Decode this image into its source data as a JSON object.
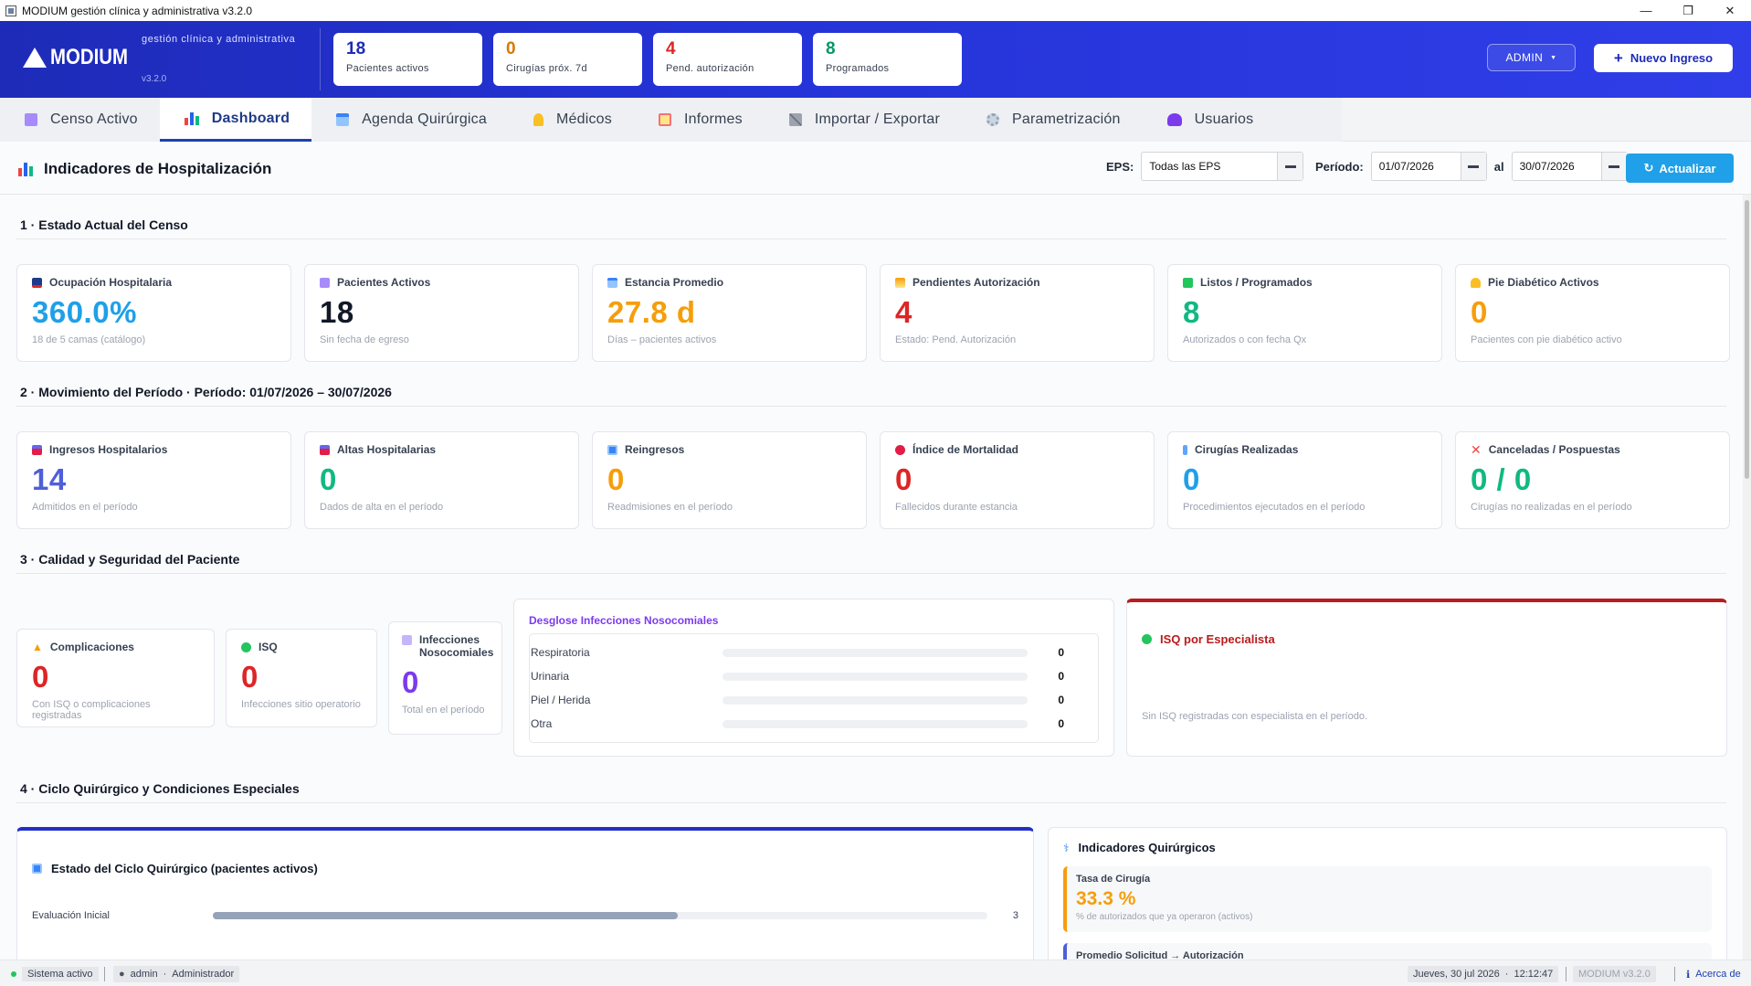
{
  "window": {
    "title": "MODIUM gestión clínica y administrativa  v3.2.0",
    "controls": [
      "—",
      "❐",
      "✕"
    ]
  },
  "header": {
    "brand": "MODIUM",
    "subtitle": "gestión clínica y administrativa",
    "version": "v3.2.0",
    "stats": [
      {
        "value": "18",
        "label": "Pacientes activos",
        "color": "#1e2bb8"
      },
      {
        "value": "0",
        "label": "Cirugías próx. 7d",
        "color": "#d97706"
      },
      {
        "value": "4",
        "label": "Pend. autorización",
        "color": "#dc2626"
      },
      {
        "value": "8",
        "label": "Programados",
        "color": "#059669"
      }
    ],
    "admin_label": "ADMIN",
    "new_label": "Nuevo Ingreso"
  },
  "tabs": [
    {
      "label": "Censo Activo",
      "icon": "clipboard-icon",
      "color": "#8b5cf6"
    },
    {
      "label": "Dashboard",
      "icon": "bar-chart-icon",
      "color": "#2563eb"
    },
    {
      "label": "Agenda Quirúrgica",
      "icon": "calendar-icon",
      "color": "#3b82f6"
    },
    {
      "label": "Médicos",
      "icon": "doctor-icon",
      "color": "#f59e0b"
    },
    {
      "label": "Informes",
      "icon": "report-icon",
      "color": "#ef4444"
    },
    {
      "label": "Importar / Exportar",
      "icon": "tools-icon",
      "color": "#6b7280"
    },
    {
      "label": "Parametrización",
      "icon": "gear-icon",
      "color": "#9ca3af"
    },
    {
      "label": "Usuarios",
      "icon": "users-icon",
      "color": "#7c3aed"
    }
  ],
  "toolbar": {
    "title": "Indicadores de Hospitalización",
    "eps_label": "EPS:",
    "eps_value": "Todas las EPS",
    "period_label": "Período:",
    "date_from": "01/07/2026",
    "al_label": "al",
    "date_to": "30/07/2026",
    "refresh_label": "Actualizar"
  },
  "section1": {
    "title": "1 · Estado Actual del Censo",
    "cards": [
      {
        "title": "Ocupación Hospitalaria",
        "value": "360.0%",
        "sub": "18 de 5 camas (catálogo)",
        "color": "#1fa0e8",
        "icon": "bed-icon"
      },
      {
        "title": "Pacientes Activos",
        "value": "18",
        "sub": "Sin fecha de egreso",
        "color": "#111827",
        "icon": "clipboard-icon"
      },
      {
        "title": "Estancia Promedio",
        "value": "27.8 d",
        "sub": "Días – pacientes activos",
        "color": "#f59e0b",
        "icon": "calendar-icon"
      },
      {
        "title": "Pendientes Autorización",
        "value": "4",
        "sub": "Estado: Pend. Autorización",
        "color": "#dc2626",
        "icon": "hourglass-icon"
      },
      {
        "title": "Listos / Programados",
        "value": "8",
        "sub": "Autorizados o con fecha Qx",
        "color": "#10b981",
        "icon": "check-icon"
      },
      {
        "title": "Pie Diabético Activos",
        "value": "0",
        "sub": "Pacientes con pie diabético activo",
        "color": "#f59e0b",
        "icon": "foot-icon"
      }
    ]
  },
  "section2": {
    "title": "2 · Movimiento del Período  ·  Período: 01/07/2026 – 30/07/2026",
    "cards": [
      {
        "title": "Ingresos Hospitalarios",
        "value": "14",
        "sub": "Admitidos en el período",
        "color": "#4f5fd8",
        "icon": "hospital-icon"
      },
      {
        "title": "Altas Hospitalarias",
        "value": "0",
        "sub": "Dados de alta en el período",
        "color": "#10b981",
        "icon": "hospital-icon"
      },
      {
        "title": "Reingresos",
        "value": "0",
        "sub": "Readmisiones en el período",
        "color": "#f59e0b",
        "icon": "refresh-icon"
      },
      {
        "title": "Índice de Mortalidad",
        "value": "0",
        "sub": "Fallecidos durante estancia",
        "color": "#dc2626",
        "icon": "heart-icon"
      },
      {
        "title": "Cirugías Realizadas",
        "value": "0",
        "sub": "Procedimientos ejecutados en el período",
        "color": "#1fa0e8",
        "icon": "caduceus-icon"
      },
      {
        "title": "Canceladas / Pospuestas",
        "value": "0 / 0",
        "sub": "Cirugías no realizadas en el período",
        "color": "#10b981",
        "icon": "x-icon"
      }
    ]
  },
  "section3": {
    "title": "3 · Calidad y Seguridad del Paciente",
    "cards": [
      {
        "title": "Complicaciones",
        "value": "0",
        "sub": "Con ISQ o complicaciones registradas",
        "color": "#dc2626",
        "icon": "warning-icon"
      },
      {
        "title": "ISQ",
        "value": "0",
        "sub": "Infecciones sitio operatorio",
        "color": "#dc2626",
        "icon": "microbe-icon"
      },
      {
        "title": "Infecciones Nosocomiales",
        "value": "0",
        "sub": "Total en el período",
        "color": "#7c3aed",
        "icon": "flask-icon"
      }
    ],
    "breakdown_title": "Desglose Infecciones Nosocomiales",
    "breakdown": [
      {
        "name": "Respiratoria",
        "value": 0
      },
      {
        "name": "Urinaria",
        "value": 0
      },
      {
        "name": "Piel / Herida",
        "value": 0
      },
      {
        "name": "Otra",
        "value": 0
      }
    ],
    "isq_title": "ISQ por Especialista",
    "isq_empty": "Sin ISQ registradas con especialista en el período."
  },
  "section4": {
    "title": "4 · Ciclo Quirúrgico y Condiciones Especiales",
    "cycle_title": "Estado del Ciclo Quirúrgico (pacientes activos)",
    "cycle_rows": [
      {
        "name": "Evaluación Inicial",
        "value": 3,
        "fraction": 0.6
      }
    ],
    "indicators_title": "Indicadores Quirúrgicos",
    "indicators": [
      {
        "title": "Tasa de Cirugía",
        "value": "33.3 %",
        "sub": "% de autorizados que ya operaron (activos)",
        "color": "#f59e0b"
      },
      {
        "title": "Promedio Solicitud → Autorización",
        "value": "",
        "sub": "",
        "color": "#4f5fd8"
      }
    ]
  },
  "statusbar": {
    "status": "Sistema activo",
    "user": "admin",
    "role": "Administrador",
    "datetime": "Jueves, 30 jul 2026",
    "time": "12:12:47",
    "version": "MODIUM  v3.2.0",
    "about": "Acerca de"
  }
}
